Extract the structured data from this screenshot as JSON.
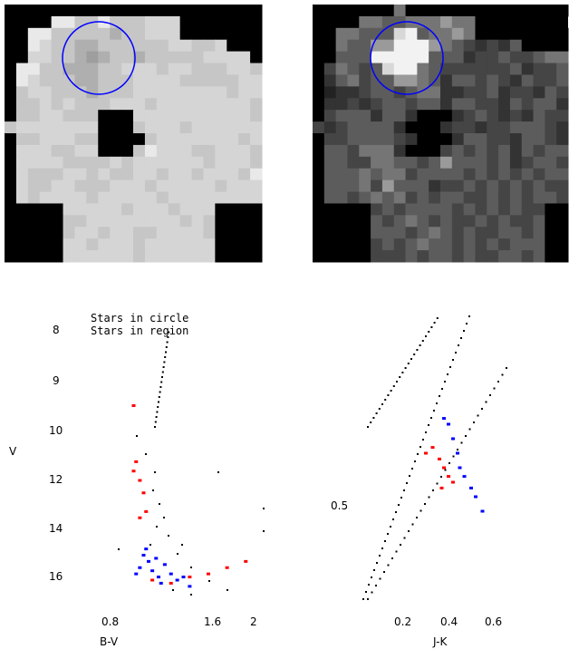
{
  "images": {
    "left": {
      "grid": [
        "0000000100000000000000",
        "0000LLIILIIIJJJ0000000",
        "00LLIIIIIHIIJJJ0000000",
        "00LJIIHHIIIIIIJJIIJ000",
        "00JJIIHGHIIHIIIIIJJJJ0",
        "0LLIIHHHIIJJJIJJIIIJJI",
        "0LJIIIHHIIIJJJJIIIIIJJ",
        "0IJJIIIHIIIJJJJJJJJIJJ",
        "0IIJIJIIIJJJIJJJJJJJJI",
        "0IIJJIII000JJJJJJJJJJI",
        "IJJJJJJJ000IJJJIJJJJJJ",
        "0IIJJJII0000IJJJJJJJIJ",
        "0JJJIIJJ000ILJJJIIJJJI",
        "0JJJJIIIIJIJJJJJJIJJJI",
        "0JIIIJJIJIIJJIJJIJJJIL",
        "0JIIJJIIIJJJIJJJJJIJJJ",
        "0JIJJJJIJJJJJIJJJJJJJJ",
        "00000JJJJJIJJJIJJJ0000",
        "00000IIJJJJJJJJIJI0000",
        "00000IJJIJJIIJJJJI0000",
        "00000JJIJJJIJJJJJJ0000",
        "00000JJJJJJIJJJJJJ0000"
      ],
      "palette": {
        "0": "#000000",
        "G": "#9e9e9e",
        "H": "#afafaf",
        "I": "#c6c6c6",
        "J": "#d5d5d5",
        "L": "#e9e9e9"
      }
    },
    "right": {
      "grid": [
        "0000000700000000000000",
        "000077667778770000000",
        "0077666IL67787000000000",
        "0076688LLL87654546000000",
        "00666LLLLL66645565567700",
        "057656ILL76555555645560",
        "046756688764665654655660",
        "034456656774455645546550",
        "0445456656646655465664556",
        "0566646640004565454655460",
        "5456666400045545566654656",
        "0556666540004665546654660",
        "066577740005656564656654",
        "066557766568666564566556",
        "066676775666656565656655",
        "066675866645565656565566",
        "066567675656655656566556",
        "000005656666565656550000",
        "000006567656556565560000",
        "000006665676565566560000",
        "000005656766565656660000",
        "000005556566565566560000"
      ],
      "palette": {
        "0": "#000000",
        "3": "#222222",
        "4": "#333333",
        "5": "#454545",
        "6": "#5c5c5c",
        "7": "#757575",
        "8": "#9a9a9a",
        "I": "#d8d8d8",
        "L": "#f2f2f2"
      }
    },
    "circle_color": "#0000ff"
  },
  "chart_data": [
    {
      "type": "scatter",
      "xlabel": "B-V",
      "ylabel": "V",
      "x_ticks": [
        "0.8",
        "1.6",
        "2"
      ],
      "y_ticks": [
        "8",
        "9",
        "10",
        "12",
        "14",
        "16"
      ],
      "legend": [
        "Stars in circle",
        "Stars in region"
      ],
      "series": [
        {
          "color": "#0000ff",
          "x": [
            1.02,
            1.05,
            1.08,
            1.1,
            1.12,
            1.15,
            1.18,
            1.2,
            1.22,
            1.25,
            1.3,
            1.35,
            1.4,
            1.45
          ],
          "y": [
            15.8,
            15.6,
            15.2,
            15.0,
            15.4,
            15.7,
            15.3,
            15.9,
            16.1,
            15.5,
            15.8,
            16.0,
            15.9,
            16.2
          ]
        },
        {
          "color": "#ff0000",
          "x": [
            1.0,
            1.02,
            1.05,
            1.08,
            1.1,
            1.0,
            1.05,
            1.15,
            1.3,
            1.45,
            1.6,
            1.75,
            1.9
          ],
          "y": [
            10.4,
            12.2,
            12.8,
            13.2,
            13.8,
            12.5,
            14.0,
            16.0,
            16.1,
            15.9,
            15.8,
            15.6,
            15.4
          ]
        }
      ]
    },
    {
      "type": "scatter",
      "xlabel": "J-K",
      "ylabel": "",
      "x_ticks": [
        "0.2",
        "0.4",
        "0.6"
      ],
      "y_ticks": [
        "0.5"
      ],
      "series": [
        {
          "color": "#0000ff",
          "x": [
            0.38,
            0.4,
            0.42,
            0.44,
            0.45,
            0.47,
            0.5,
            0.52,
            0.55
          ],
          "y": [
            0.62,
            0.6,
            0.55,
            0.5,
            0.45,
            0.42,
            0.38,
            0.35,
            0.3
          ]
        },
        {
          "color": "#ff0000",
          "x": [
            0.3,
            0.33,
            0.36,
            0.38,
            0.4,
            0.42,
            0.37
          ],
          "y": [
            0.5,
            0.52,
            0.48,
            0.45,
            0.42,
            0.4,
            0.38
          ]
        }
      ]
    }
  ]
}
